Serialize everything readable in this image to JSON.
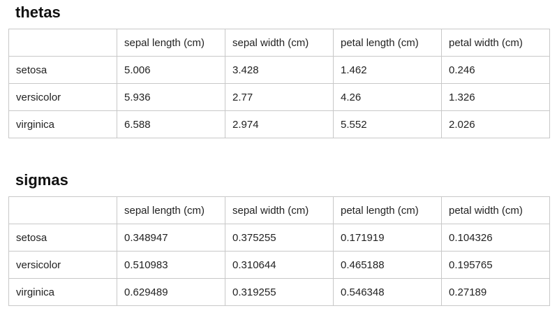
{
  "thetas": {
    "title": "thetas",
    "columns": [
      "",
      "sepal length (cm)",
      "sepal width (cm)",
      "petal length (cm)",
      "petal width (cm)"
    ],
    "rows": [
      [
        "setosa",
        "5.006",
        "3.428",
        "1.462",
        "0.246"
      ],
      [
        "versicolor",
        "5.936",
        "2.77",
        "4.26",
        "1.326"
      ],
      [
        "virginica",
        "6.588",
        "2.974",
        "5.552",
        "2.026"
      ]
    ]
  },
  "sigmas": {
    "title": "sigmas",
    "columns": [
      "",
      "sepal length (cm)",
      "sepal width (cm)",
      "petal length (cm)",
      "petal width (cm)"
    ],
    "rows": [
      [
        "setosa",
        "0.348947",
        "0.375255",
        "0.171919",
        "0.104326"
      ],
      [
        "versicolor",
        "0.510983",
        "0.310644",
        "0.465188",
        "0.195765"
      ],
      [
        "virginica",
        "0.629489",
        "0.319255",
        "0.546348",
        "0.27189"
      ]
    ]
  }
}
